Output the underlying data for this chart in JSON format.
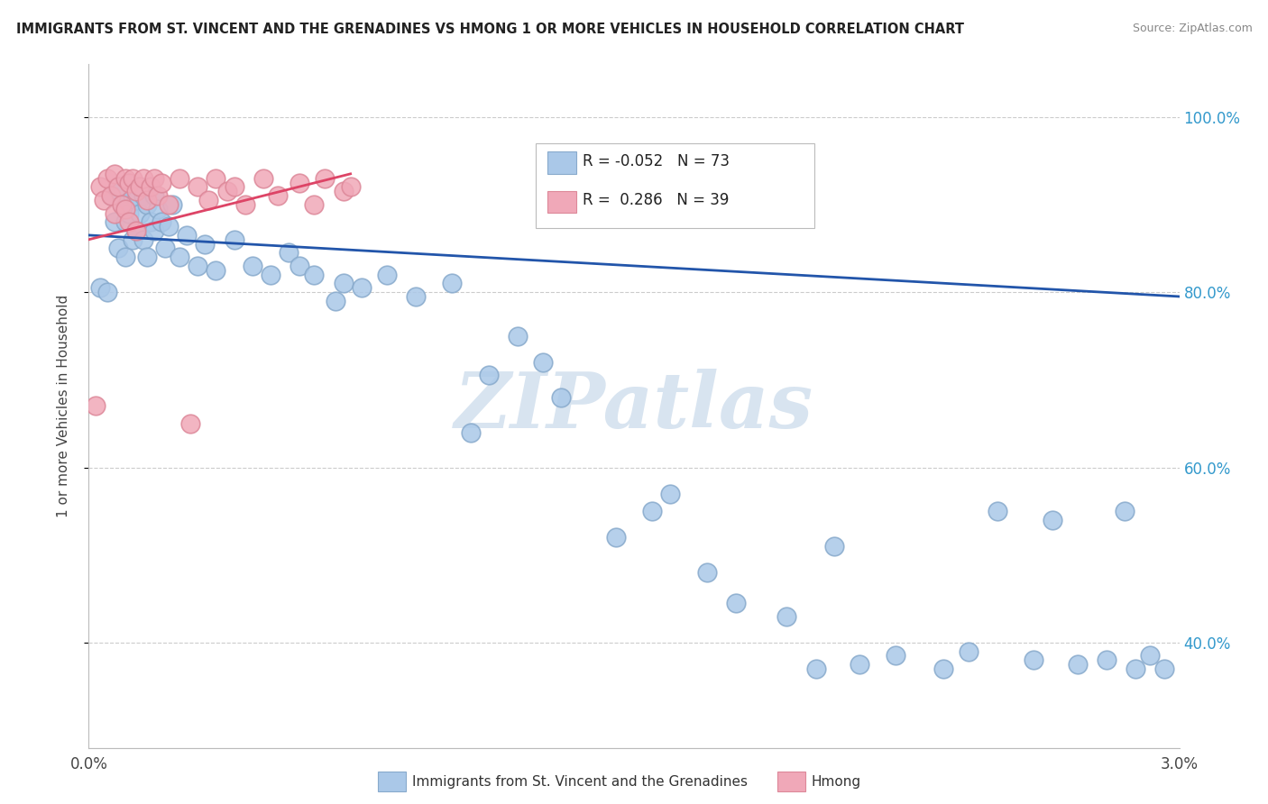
{
  "title": "IMMIGRANTS FROM ST. VINCENT AND THE GRENADINES VS HMONG 1 OR MORE VEHICLES IN HOUSEHOLD CORRELATION CHART",
  "source": "Source: ZipAtlas.com",
  "ylabel": "1 or more Vehicles in Household",
  "legend_label_blue": "Immigrants from St. Vincent and the Grenadines",
  "legend_label_pink": "Hmong",
  "blue_R": -0.052,
  "blue_N": 73,
  "pink_R": 0.286,
  "pink_N": 39,
  "blue_color": "#aac8e8",
  "pink_color": "#f0a8b8",
  "blue_edge_color": "#88aacc",
  "pink_edge_color": "#dd8899",
  "blue_line_color": "#2255aa",
  "pink_line_color": "#dd4466",
  "xlim": [
    0.0,
    3.0
  ],
  "ylim": [
    28.0,
    106.0
  ],
  "yticks": [
    40,
    60,
    80,
    100
  ],
  "ytick_labels": [
    "40.0%",
    "60.0%",
    "80.0%",
    "100.0%"
  ],
  "grid_color": "#cccccc",
  "watermark_text": "ZIPatlas",
  "watermark_color": "#d8e4f0",
  "background": "#ffffff",
  "blue_line_x": [
    0.0,
    3.0
  ],
  "blue_line_y": [
    86.5,
    79.5
  ],
  "pink_line_x": [
    0.0,
    0.72
  ],
  "pink_line_y": [
    86.0,
    93.5
  ],
  "blue_x": [
    0.03,
    0.05,
    0.06,
    0.07,
    0.08,
    0.08,
    0.09,
    0.09,
    0.1,
    0.1,
    0.11,
    0.11,
    0.12,
    0.12,
    0.13,
    0.13,
    0.14,
    0.14,
    0.15,
    0.15,
    0.16,
    0.16,
    0.17,
    0.18,
    0.18,
    0.19,
    0.2,
    0.21,
    0.22,
    0.23,
    0.25,
    0.27,
    0.3,
    0.32,
    0.35,
    0.4,
    0.45,
    0.5,
    0.55,
    0.58,
    0.62,
    0.68,
    0.7,
    0.75,
    0.82,
    0.9,
    1.0,
    1.05,
    1.1,
    1.18,
    1.25,
    1.3,
    1.45,
    1.55,
    1.6,
    1.7,
    1.78,
    1.92,
    2.0,
    2.05,
    2.12,
    2.22,
    2.35,
    2.42,
    2.5,
    2.6,
    2.65,
    2.72,
    2.8,
    2.85,
    2.88,
    2.92,
    2.96
  ],
  "blue_y": [
    80.5,
    80.0,
    91.0,
    88.0,
    91.5,
    85.0,
    90.0,
    92.0,
    88.0,
    84.0,
    92.5,
    89.0,
    91.0,
    86.0,
    90.5,
    87.0,
    89.0,
    92.0,
    91.0,
    86.0,
    90.0,
    84.0,
    88.0,
    91.0,
    87.0,
    89.5,
    88.0,
    85.0,
    87.5,
    90.0,
    84.0,
    86.5,
    83.0,
    85.5,
    82.5,
    86.0,
    83.0,
    82.0,
    84.5,
    83.0,
    82.0,
    79.0,
    81.0,
    80.5,
    82.0,
    79.5,
    81.0,
    64.0,
    70.5,
    75.0,
    72.0,
    68.0,
    52.0,
    55.0,
    57.0,
    48.0,
    44.5,
    43.0,
    37.0,
    51.0,
    37.5,
    38.5,
    37.0,
    39.0,
    55.0,
    38.0,
    54.0,
    37.5,
    38.0,
    55.0,
    37.0,
    38.5,
    37.0
  ],
  "pink_x": [
    0.02,
    0.03,
    0.04,
    0.05,
    0.06,
    0.07,
    0.07,
    0.08,
    0.09,
    0.1,
    0.1,
    0.11,
    0.11,
    0.12,
    0.13,
    0.13,
    0.14,
    0.15,
    0.16,
    0.17,
    0.18,
    0.19,
    0.2,
    0.22,
    0.25,
    0.28,
    0.3,
    0.33,
    0.35,
    0.38,
    0.4,
    0.43,
    0.48,
    0.52,
    0.58,
    0.62,
    0.65,
    0.7,
    0.72
  ],
  "pink_y": [
    67.0,
    92.0,
    90.5,
    93.0,
    91.0,
    93.5,
    89.0,
    92.0,
    90.0,
    93.0,
    89.5,
    92.5,
    88.0,
    93.0,
    91.5,
    87.0,
    92.0,
    93.0,
    90.5,
    92.0,
    93.0,
    91.0,
    92.5,
    90.0,
    93.0,
    65.0,
    92.0,
    90.5,
    93.0,
    91.5,
    92.0,
    90.0,
    93.0,
    91.0,
    92.5,
    90.0,
    93.0,
    91.5,
    92.0
  ]
}
